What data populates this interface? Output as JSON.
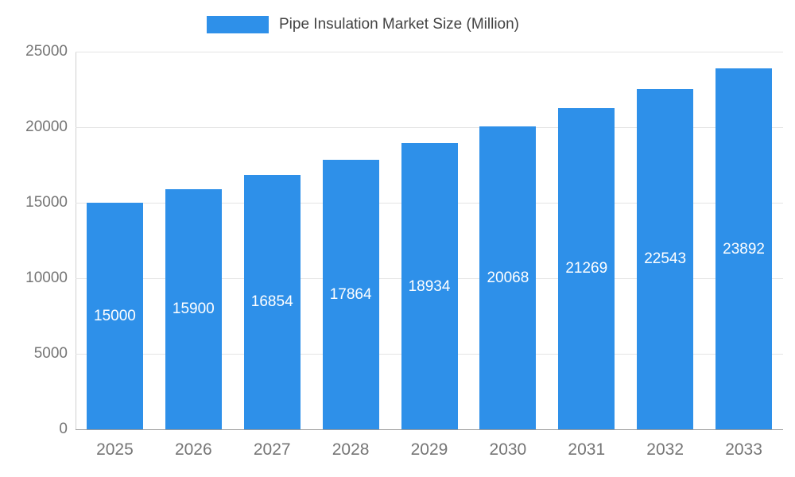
{
  "legend": {
    "label": "Pipe Insulation Market Size (Million)"
  },
  "colors": {
    "bar": "#2E90E9",
    "grid": "#e4e4e4",
    "baseline": "#9b9b9b",
    "tick_text": "#757575",
    "legend_text": "#434343",
    "value_text": "#ffffff",
    "background": "#ffffff"
  },
  "chart_data": {
    "type": "bar",
    "title": "Pipe Insulation Market Size (Million)",
    "series_name": "Pipe Insulation Market Size (Million)",
    "categories": [
      "2025",
      "2026",
      "2027",
      "2028",
      "2029",
      "2030",
      "2031",
      "2032",
      "2033"
    ],
    "values": [
      15000,
      15900,
      16854,
      17864,
      18934,
      20068,
      21269,
      22543,
      23892
    ],
    "xlabel": "",
    "ylabel": "",
    "ylim": [
      0,
      25000
    ],
    "yticks": [
      0,
      5000,
      10000,
      15000,
      20000,
      25000
    ],
    "grid": true,
    "legend_position": "top",
    "value_label_position": "inside-center",
    "bar_color": "#2E90E9"
  }
}
